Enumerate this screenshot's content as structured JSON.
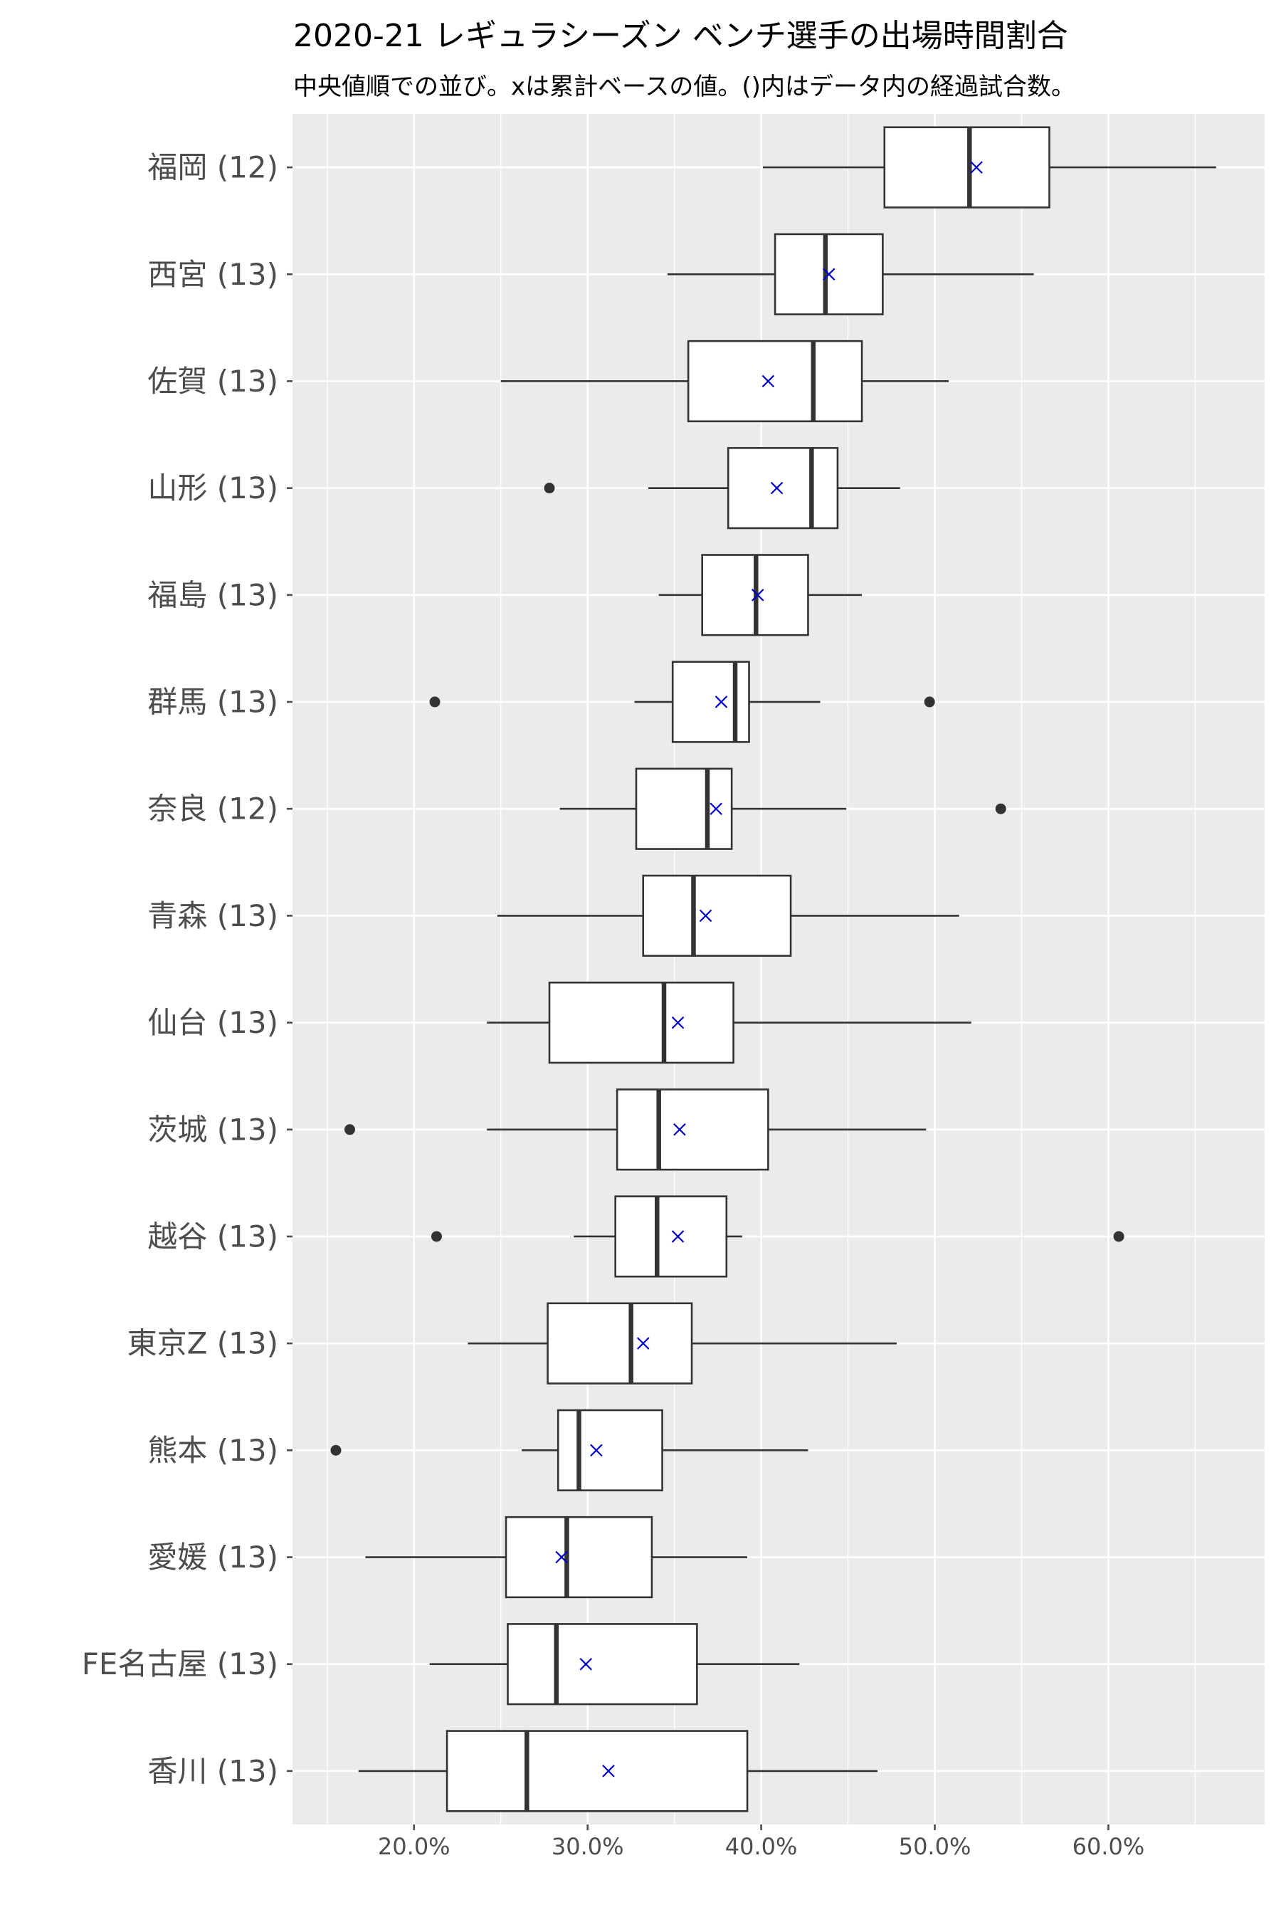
{
  "chart_data": {
    "type": "boxplot",
    "title": "2020-21 レギュラシーズン ベンチ選手の出場時間割合",
    "subtitle": "中央値順での並び。xは累計ベースの値。()内はデータ内の経過試合数。",
    "xlabel": "",
    "ylabel": "",
    "xlim": [
      0.13,
      0.69
    ],
    "x_ticks": [
      0.2,
      0.3,
      0.4,
      0.5,
      0.6
    ],
    "x_tick_labels": [
      "20.0%",
      "30.0%",
      "40.0%",
      "50.0%",
      "60.0%"
    ],
    "grid": true,
    "legend": "none",
    "colors": {
      "panel_background": "#ebebeb",
      "grid_line": "#ffffff",
      "box_fill": "#ffffff",
      "box_line": "#333333",
      "outlier": "#333333",
      "mean_marker": "#0000cc",
      "axis_text": "#4d4d4d"
    },
    "series": [
      {
        "category": "福岡 (12)",
        "min": 0.401,
        "q1": 0.471,
        "median": 0.52,
        "q3": 0.566,
        "max": 0.662,
        "mean": 0.524,
        "outliers": []
      },
      {
        "category": "西宮 (13)",
        "min": 0.346,
        "q1": 0.408,
        "median": 0.437,
        "q3": 0.47,
        "max": 0.557,
        "mean": 0.439,
        "outliers": []
      },
      {
        "category": "佐賀 (13)",
        "min": 0.25,
        "q1": 0.358,
        "median": 0.43,
        "q3": 0.458,
        "max": 0.508,
        "mean": 0.404,
        "outliers": []
      },
      {
        "category": "山形 (13)",
        "min": 0.335,
        "q1": 0.381,
        "median": 0.429,
        "q3": 0.444,
        "max": 0.48,
        "mean": 0.409,
        "outliers": [
          0.278
        ]
      },
      {
        "category": "福島 (13)",
        "min": 0.341,
        "q1": 0.366,
        "median": 0.397,
        "q3": 0.427,
        "max": 0.458,
        "mean": 0.398,
        "outliers": []
      },
      {
        "category": "群馬 (13)",
        "min": 0.327,
        "q1": 0.349,
        "median": 0.385,
        "q3": 0.393,
        "max": 0.434,
        "mean": 0.377,
        "outliers": [
          0.212,
          0.497
        ]
      },
      {
        "category": "奈良 (12)",
        "min": 0.284,
        "q1": 0.328,
        "median": 0.369,
        "q3": 0.383,
        "max": 0.449,
        "mean": 0.374,
        "outliers": [
          0.538
        ]
      },
      {
        "category": "青森 (13)",
        "min": 0.248,
        "q1": 0.332,
        "median": 0.361,
        "q3": 0.417,
        "max": 0.514,
        "mean": 0.368,
        "outliers": []
      },
      {
        "category": "仙台 (13)",
        "min": 0.242,
        "q1": 0.278,
        "median": 0.344,
        "q3": 0.384,
        "max": 0.521,
        "mean": 0.352,
        "outliers": []
      },
      {
        "category": "茨城 (13)",
        "min": 0.242,
        "q1": 0.317,
        "median": 0.341,
        "q3": 0.404,
        "max": 0.495,
        "mean": 0.353,
        "outliers": [
          0.163
        ]
      },
      {
        "category": "越谷 (13)",
        "min": 0.292,
        "q1": 0.316,
        "median": 0.34,
        "q3": 0.38,
        "max": 0.389,
        "mean": 0.352,
        "outliers": [
          0.213,
          0.606
        ]
      },
      {
        "category": "東京Z (13)",
        "min": 0.231,
        "q1": 0.277,
        "median": 0.325,
        "q3": 0.36,
        "max": 0.478,
        "mean": 0.332,
        "outliers": []
      },
      {
        "category": "熊本 (13)",
        "min": 0.262,
        "q1": 0.283,
        "median": 0.295,
        "q3": 0.343,
        "max": 0.427,
        "mean": 0.305,
        "outliers": [
          0.155
        ]
      },
      {
        "category": "愛媛 (13)",
        "min": 0.172,
        "q1": 0.253,
        "median": 0.288,
        "q3": 0.337,
        "max": 0.392,
        "mean": 0.285,
        "outliers": []
      },
      {
        "category": "FE名古屋 (13)",
        "min": 0.209,
        "q1": 0.254,
        "median": 0.282,
        "q3": 0.363,
        "max": 0.422,
        "mean": 0.299,
        "outliers": []
      },
      {
        "category": "香川 (13)",
        "min": 0.168,
        "q1": 0.219,
        "median": 0.265,
        "q3": 0.392,
        "max": 0.467,
        "mean": 0.312,
        "outliers": []
      }
    ]
  }
}
